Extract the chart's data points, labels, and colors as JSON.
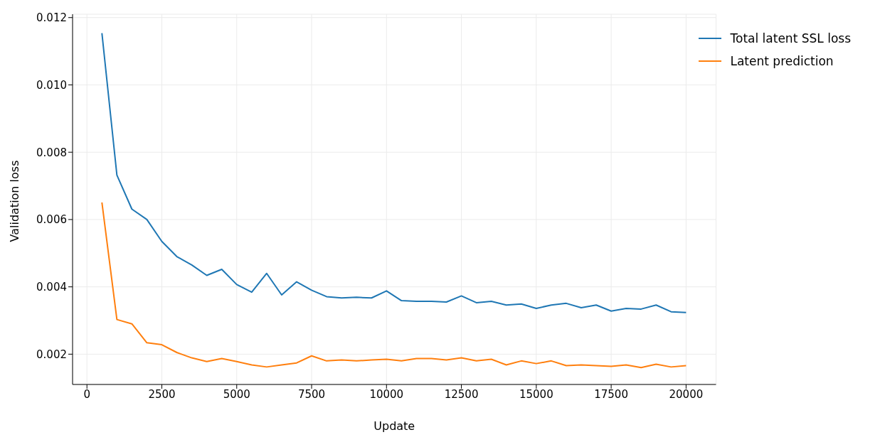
{
  "chart_data": {
    "type": "line",
    "xlabel": "Update",
    "ylabel": "Validation loss",
    "x": [
      500,
      1000,
      1500,
      2000,
      2500,
      3000,
      3500,
      4000,
      4500,
      5000,
      5500,
      6000,
      6500,
      7000,
      7500,
      8000,
      8500,
      9000,
      9500,
      10000,
      10500,
      11000,
      11500,
      12000,
      12500,
      13000,
      13500,
      14000,
      14500,
      15000,
      15500,
      16000,
      16500,
      17000,
      17500,
      18000,
      18500,
      19000,
      19500,
      20000
    ],
    "series": [
      {
        "name": "Total latent SSL loss",
        "color": "#1f77b4",
        "values": [
          0.01154,
          0.00732,
          0.00631,
          0.006,
          0.00535,
          0.0049,
          0.00465,
          0.00434,
          0.00452,
          0.00407,
          0.00384,
          0.0044,
          0.00376,
          0.00415,
          0.0039,
          0.00371,
          0.00367,
          0.00369,
          0.00367,
          0.00388,
          0.00359,
          0.00357,
          0.00357,
          0.00355,
          0.00373,
          0.00353,
          0.00357,
          0.00346,
          0.00349,
          0.00336,
          0.00346,
          0.00351,
          0.00338,
          0.00346,
          0.00328,
          0.00336,
          0.00334,
          0.00346,
          0.00326,
          0.00324
        ]
      },
      {
        "name": "Latent prediction",
        "color": "#ff7f0e",
        "values": [
          0.00651,
          0.00303,
          0.0029,
          0.00234,
          0.00228,
          0.00205,
          0.00189,
          0.00178,
          0.00187,
          0.00178,
          0.00168,
          0.00162,
          0.00168,
          0.00174,
          0.00195,
          0.0018,
          0.00183,
          0.0018,
          0.00183,
          0.00185,
          0.0018,
          0.00187,
          0.00187,
          0.00183,
          0.00189,
          0.0018,
          0.00185,
          0.00168,
          0.0018,
          0.00172,
          0.0018,
          0.00166,
          0.00168,
          0.00166,
          0.00164,
          0.00168,
          0.0016,
          0.0017,
          0.00162,
          0.00166
        ]
      }
    ],
    "xlim": [
      -480,
      21000
    ],
    "xticks": [
      0,
      2500,
      5000,
      7500,
      10000,
      12500,
      15000,
      17500,
      20000
    ],
    "ylim": [
      0.0011,
      0.0121
    ],
    "yticks": [
      0.002,
      0.004,
      0.006,
      0.008,
      {
        "value": 0.01,
        "label": "0.010"
      },
      0.012
    ],
    "grid": true,
    "legend": "top right",
    "marker": "none",
    "line_style": "solid"
  }
}
